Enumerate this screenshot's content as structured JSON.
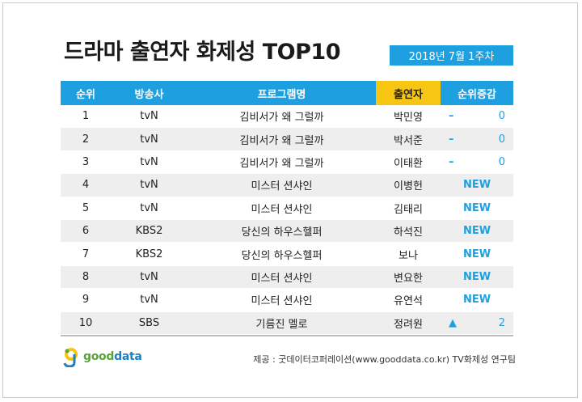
{
  "title": "드라마 출연자 화제성 TOP10",
  "date": "2018년  7월 1주차",
  "headers": {
    "rank": "순위",
    "channel": "방송사",
    "program": "프로그램명",
    "cast": "출연자",
    "change": "순위증감"
  },
  "rows": [
    {
      "rank": "1",
      "channel": "tvN",
      "program": "김비서가 왜 그럴까",
      "cast": "박민영",
      "change_symbol": "–",
      "change_value": "0"
    },
    {
      "rank": "2",
      "channel": "tvN",
      "program": "김비서가 왜 그럴까",
      "cast": "박서준",
      "change_symbol": "–",
      "change_value": "0"
    },
    {
      "rank": "3",
      "channel": "tvN",
      "program": "김비서가 왜 그럴까",
      "cast": "이태환",
      "change_symbol": "–",
      "change_value": "0"
    },
    {
      "rank": "4",
      "channel": "tvN",
      "program": "미스터 션샤인",
      "cast": "이병헌",
      "change_new": "NEW"
    },
    {
      "rank": "5",
      "channel": "tvN",
      "program": "미스터 션샤인",
      "cast": "김태리",
      "change_new": "NEW"
    },
    {
      "rank": "6",
      "channel": "KBS2",
      "program": "당신의 하우스헬퍼",
      "cast": "하석진",
      "change_new": "NEW"
    },
    {
      "rank": "7",
      "channel": "KBS2",
      "program": "당신의 하우스헬퍼",
      "cast": "보나",
      "change_new": "NEW"
    },
    {
      "rank": "8",
      "channel": "tvN",
      "program": "미스터 션샤인",
      "cast": "변요한",
      "change_new": "NEW"
    },
    {
      "rank": "9",
      "channel": "tvN",
      "program": "미스터 션샤인",
      "cast": "유연석",
      "change_new": "NEW"
    },
    {
      "rank": "10",
      "channel": "SBS",
      "program": "기름진 멜로",
      "cast": "정려원",
      "change_symbol": "▲",
      "change_value": "2"
    }
  ],
  "logo": {
    "brand_a": "good",
    "brand_b": "data"
  },
  "source": "제공 : 굿데이터코퍼레이션(www.gooddata.co.kr) TV화제성 연구팀",
  "colors": {
    "accent_blue": "#1e9fe0",
    "accent_yellow": "#f6c612"
  }
}
